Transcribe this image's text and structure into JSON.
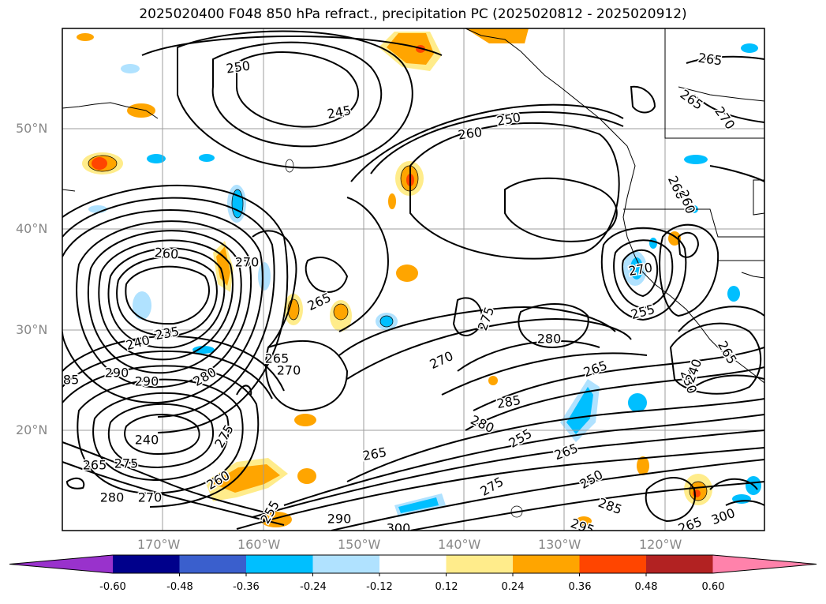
{
  "title": "2025020400 F048 850 hPa refract., precipitation PC (2025020812 - 2025020912)",
  "lat_labels": [
    "50°N",
    "40°N",
    "30°N",
    "20°N"
  ],
  "lon_labels": [
    "170°W",
    "160°W",
    "150°W",
    "140°W",
    "130°W",
    "120°W"
  ],
  "colorbar": {
    "colors": [
      "#9932cc",
      "#00008b",
      "#3a5fcd",
      "#00bfff",
      "#b0e2ff",
      "#ffffff",
      "#ffec8b",
      "#ffa500",
      "#ff4500",
      "#b22222",
      "#ff82ab"
    ],
    "ticks": [
      "-0.60",
      "-0.48",
      "-0.36",
      "-0.24",
      "-0.12",
      "0.12",
      "0.24",
      "0.36",
      "0.48",
      "0.60"
    ]
  },
  "contour_labels": [
    "250",
    "245",
    "260",
    "250",
    "265",
    "265",
    "270",
    "260",
    "250",
    "260",
    "270",
    "265",
    "235",
    "240",
    "270",
    "265",
    "270",
    "275",
    "280",
    "280",
    "270",
    "290",
    "285",
    "290",
    "265",
    "275",
    "240",
    "265",
    "255",
    "280",
    "265",
    "275",
    "280",
    "285",
    "255",
    "265",
    "250",
    "270",
    "275",
    "285",
    "290",
    "300",
    "295",
    "300",
    "265",
    "260",
    "255",
    "230",
    "240",
    "265",
    "270",
    "260"
  ]
}
